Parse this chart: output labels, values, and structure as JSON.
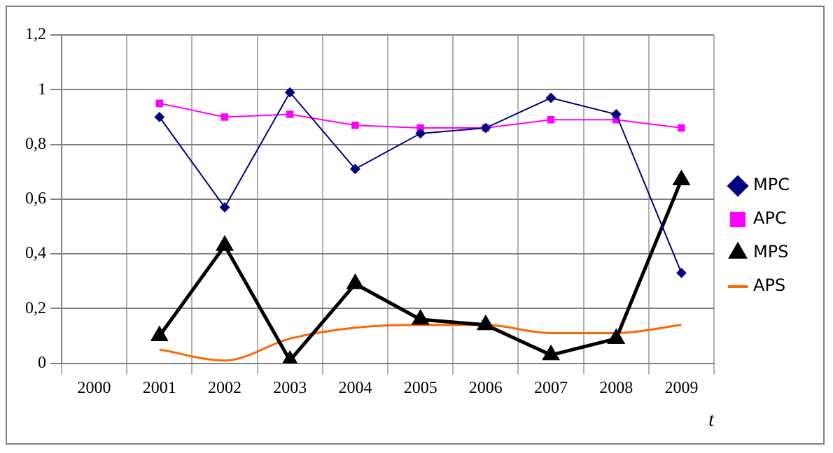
{
  "chart_data": {
    "type": "line",
    "xlabel": "t",
    "categories": [
      "2000",
      "2001",
      "2002",
      "2003",
      "2004",
      "2005",
      "2006",
      "2007",
      "2008",
      "2009"
    ],
    "series": [
      {
        "name": "MPC",
        "color": "#000080",
        "marker": "diamond",
        "values": [
          null,
          0.9,
          0.57,
          0.99,
          0.71,
          0.84,
          0.86,
          0.97,
          0.91,
          0.33
        ]
      },
      {
        "name": "APC",
        "color": "#ff00ff",
        "marker": "square",
        "values": [
          null,
          0.95,
          0.9,
          0.91,
          0.87,
          0.86,
          0.86,
          0.89,
          0.89,
          0.86
        ]
      },
      {
        "name": "MPS",
        "color": "#000000",
        "marker": "triangle",
        "values": [
          null,
          0.1,
          0.43,
          0.01,
          0.29,
          0.16,
          0.14,
          0.03,
          0.09,
          0.67
        ]
      },
      {
        "name": "APS",
        "color": "#ff6600",
        "marker": "none",
        "values": [
          null,
          0.05,
          0.01,
          0.09,
          0.13,
          0.14,
          0.14,
          0.11,
          0.11,
          0.14
        ]
      }
    ],
    "ylim": [
      0,
      1.2
    ],
    "yticks": [
      0,
      {
        "value": 0.2,
        "label": "0,2"
      },
      {
        "value": 0.4,
        "label": "0,4"
      },
      {
        "value": 0.6,
        "label": "0,6"
      },
      {
        "value": 0.8,
        "label": "0,8"
      },
      1,
      {
        "value": 1.2,
        "label": "1,2"
      }
    ],
    "grid": true,
    "legend": "right"
  }
}
